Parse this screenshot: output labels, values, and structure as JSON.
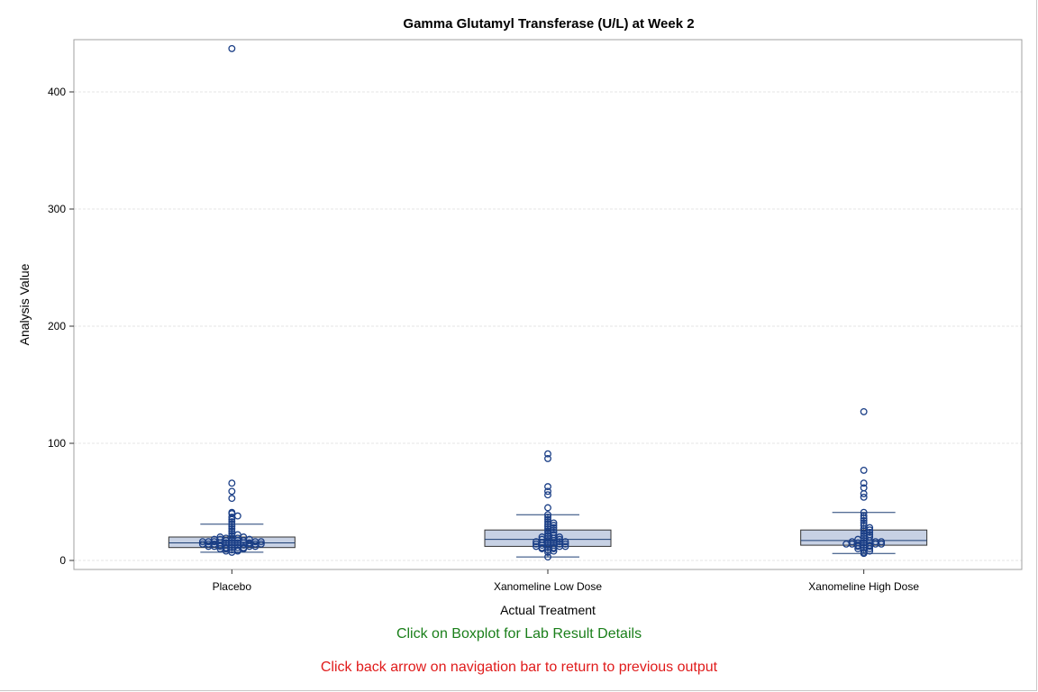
{
  "chart_data": {
    "type": "box",
    "title": "Gamma Glutamyl Transferase (U/L) at Week 2",
    "xlabel": "Actual Treatment",
    "ylabel": "Analysis Value",
    "ylim": [
      0,
      440
    ],
    "yticks": [
      0,
      100,
      200,
      300,
      400
    ],
    "grid": true,
    "categories": [
      "Placebo",
      "Xanomeline Low Dose",
      "Xanomeline High Dose"
    ],
    "series": [
      {
        "category": "Placebo",
        "q1": 11,
        "median": 15,
        "q3": 20,
        "whisker_low": 7,
        "whisker_high": 31,
        "points": [
          7,
          8,
          8,
          9,
          9,
          10,
          10,
          10,
          11,
          11,
          11,
          11,
          12,
          12,
          12,
          12,
          12,
          13,
          13,
          13,
          13,
          13,
          14,
          14,
          14,
          14,
          14,
          14,
          15,
          15,
          15,
          15,
          15,
          15,
          16,
          16,
          16,
          16,
          16,
          17,
          17,
          17,
          17,
          18,
          18,
          18,
          19,
          19,
          19,
          20,
          20,
          21,
          22,
          23,
          25,
          27,
          29,
          31,
          33,
          35,
          37,
          38,
          40,
          41,
          53,
          59,
          66,
          437
        ]
      },
      {
        "category": "Xanomeline Low Dose",
        "q1": 12,
        "median": 18,
        "q3": 26,
        "whisker_low": 3,
        "whisker_high": 39,
        "points": [
          3,
          7,
          8,
          9,
          10,
          10,
          11,
          11,
          11,
          12,
          12,
          12,
          13,
          13,
          13,
          14,
          14,
          14,
          15,
          15,
          15,
          16,
          16,
          16,
          17,
          17,
          18,
          18,
          19,
          19,
          20,
          20,
          21,
          22,
          23,
          24,
          25,
          26,
          27,
          28,
          29,
          30,
          31,
          32,
          33,
          35,
          37,
          39,
          45,
          56,
          59,
          63,
          87,
          91
        ]
      },
      {
        "category": "Xanomeline High Dose",
        "q1": 13,
        "median": 17,
        "q3": 26,
        "whisker_low": 6,
        "whisker_high": 41,
        "points": [
          6,
          7,
          8,
          9,
          10,
          10,
          11,
          12,
          12,
          13,
          13,
          13,
          14,
          14,
          14,
          14,
          15,
          15,
          15,
          16,
          16,
          16,
          17,
          17,
          18,
          19,
          20,
          21,
          22,
          23,
          24,
          25,
          26,
          27,
          28,
          30,
          32,
          34,
          36,
          38,
          41,
          54,
          57,
          62,
          66,
          77,
          127
        ]
      }
    ],
    "colors": {
      "box_fill": "#c7d1e4",
      "box_stroke": "#1d3f74",
      "point_stroke": "#1a3e86",
      "grid": "#e4e4e4",
      "frame": "#a0a0a0"
    },
    "footnotes": [
      {
        "text": "Click on Boxplot for Lab Result Details",
        "color": "#1a7f1a"
      },
      {
        "text": "Click back arrow on navigation bar to return to previous output",
        "color": "#e01b1b"
      }
    ]
  }
}
